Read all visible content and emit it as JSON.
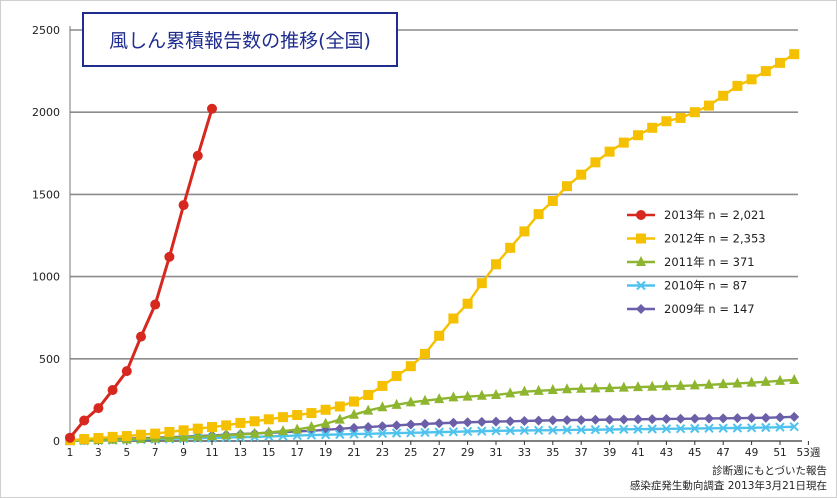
{
  "chart_data": {
    "type": "line",
    "title": "風しん累積報告数の推移(全国)",
    "ylim": [
      0,
      2500
    ],
    "yticks": [
      0,
      500,
      1000,
      1500,
      2000,
      2500
    ],
    "xlim": [
      1,
      53
    ],
    "xticks": [
      "1",
      "3",
      "5",
      "7",
      "9",
      "11",
      "13",
      "15",
      "17",
      "19",
      "21",
      "23",
      "25",
      "27",
      "29",
      "31",
      "33",
      "35",
      "37",
      "39",
      "41",
      "43",
      "45",
      "47",
      "49",
      "51",
      "53週"
    ],
    "grid": "horizontal",
    "legend_position": "right",
    "series": [
      {
        "name": "2013年 n = 2,021",
        "color": "#d6281e",
        "marker": "circle",
        "x": [
          1,
          2,
          3,
          4,
          5,
          6,
          7,
          8,
          9,
          10,
          11
        ],
        "values": [
          20,
          125,
          200,
          310,
          425,
          635,
          830,
          1120,
          1435,
          1735,
          2021
        ]
      },
      {
        "name": "2012年 n = 2,353",
        "color": "#f5c000",
        "marker": "square",
        "x": [
          1,
          2,
          3,
          4,
          5,
          6,
          7,
          8,
          9,
          10,
          11,
          12,
          13,
          14,
          15,
          16,
          17,
          18,
          19,
          20,
          21,
          22,
          23,
          24,
          25,
          26,
          27,
          28,
          29,
          30,
          31,
          32,
          33,
          34,
          35,
          36,
          37,
          38,
          39,
          40,
          41,
          42,
          43,
          44,
          45,
          46,
          47,
          48,
          49,
          50,
          51,
          52
        ],
        "values": [
          5,
          12,
          18,
          25,
          30,
          38,
          45,
          55,
          65,
          75,
          85,
          95,
          110,
          120,
          132,
          145,
          158,
          170,
          190,
          210,
          240,
          280,
          335,
          395,
          455,
          530,
          640,
          745,
          835,
          960,
          1075,
          1175,
          1275,
          1380,
          1460,
          1550,
          1620,
          1695,
          1760,
          1815,
          1860,
          1905,
          1945,
          1965,
          2000,
          2040,
          2100,
          2160,
          2200,
          2250,
          2300,
          2353
        ]
      },
      {
        "name": "2011年 n = 371",
        "color": "#8db52f",
        "marker": "triangle",
        "x": [
          1,
          2,
          3,
          4,
          5,
          6,
          7,
          8,
          9,
          10,
          11,
          12,
          13,
          14,
          15,
          16,
          17,
          18,
          19,
          20,
          21,
          22,
          23,
          24,
          25,
          26,
          27,
          28,
          29,
          30,
          31,
          32,
          33,
          34,
          35,
          36,
          37,
          38,
          39,
          40,
          41,
          42,
          43,
          44,
          45,
          46,
          47,
          48,
          49,
          50,
          51,
          52
        ],
        "values": [
          1,
          3,
          5,
          8,
          10,
          13,
          16,
          19,
          22,
          26,
          30,
          35,
          40,
          45,
          52,
          60,
          70,
          85,
          105,
          130,
          160,
          185,
          205,
          220,
          235,
          245,
          255,
          265,
          270,
          275,
          280,
          290,
          300,
          305,
          310,
          315,
          318,
          320,
          322,
          325,
          328,
          330,
          333,
          335,
          338,
          342,
          346,
          350,
          355,
          360,
          366,
          371
        ]
      },
      {
        "name": "2010年 n = 87",
        "color": "#4fc3ee",
        "marker": "x",
        "x": [
          1,
          2,
          3,
          4,
          5,
          6,
          7,
          8,
          9,
          10,
          11,
          12,
          13,
          14,
          15,
          16,
          17,
          18,
          19,
          20,
          21,
          22,
          23,
          24,
          25,
          26,
          27,
          28,
          29,
          30,
          31,
          32,
          33,
          34,
          35,
          36,
          37,
          38,
          39,
          40,
          41,
          42,
          43,
          44,
          45,
          46,
          47,
          48,
          49,
          50,
          51,
          52
        ],
        "values": [
          0,
          2,
          4,
          5,
          7,
          9,
          11,
          13,
          15,
          17,
          19,
          21,
          23,
          25,
          28,
          30,
          33,
          36,
          38,
          40,
          42,
          44,
          46,
          48,
          50,
          52,
          54,
          56,
          58,
          60,
          62,
          63,
          64,
          65,
          66,
          67,
          68,
          69,
          70,
          71,
          72,
          73,
          74,
          75,
          76,
          77,
          78,
          79,
          80,
          82,
          84,
          87
        ]
      },
      {
        "name": "2009年 n = 147",
        "color": "#6a5fa8",
        "marker": "diamond",
        "x": [
          1,
          2,
          3,
          4,
          5,
          6,
          7,
          8,
          9,
          10,
          11,
          12,
          13,
          14,
          15,
          16,
          17,
          18,
          19,
          20,
          21,
          22,
          23,
          24,
          25,
          26,
          27,
          28,
          29,
          30,
          31,
          32,
          33,
          34,
          35,
          36,
          37,
          38,
          39,
          40,
          41,
          42,
          43,
          44,
          45,
          46,
          47,
          48,
          49,
          50,
          51,
          52
        ],
        "values": [
          2,
          5,
          8,
          11,
          14,
          17,
          20,
          23,
          26,
          30,
          34,
          38,
          42,
          46,
          50,
          54,
          58,
          62,
          68,
          74,
          80,
          85,
          90,
          95,
          100,
          104,
          108,
          111,
          114,
          116,
          118,
          120,
          122,
          124,
          126,
          127,
          128,
          129,
          130,
          131,
          132,
          133,
          134,
          135,
          136,
          137,
          138,
          139,
          140,
          141,
          144,
          147
        ]
      }
    ],
    "notes": [
      "診断週にもとづいた報告",
      "感染症発生動向調査 2013年3月21日現在"
    ]
  }
}
